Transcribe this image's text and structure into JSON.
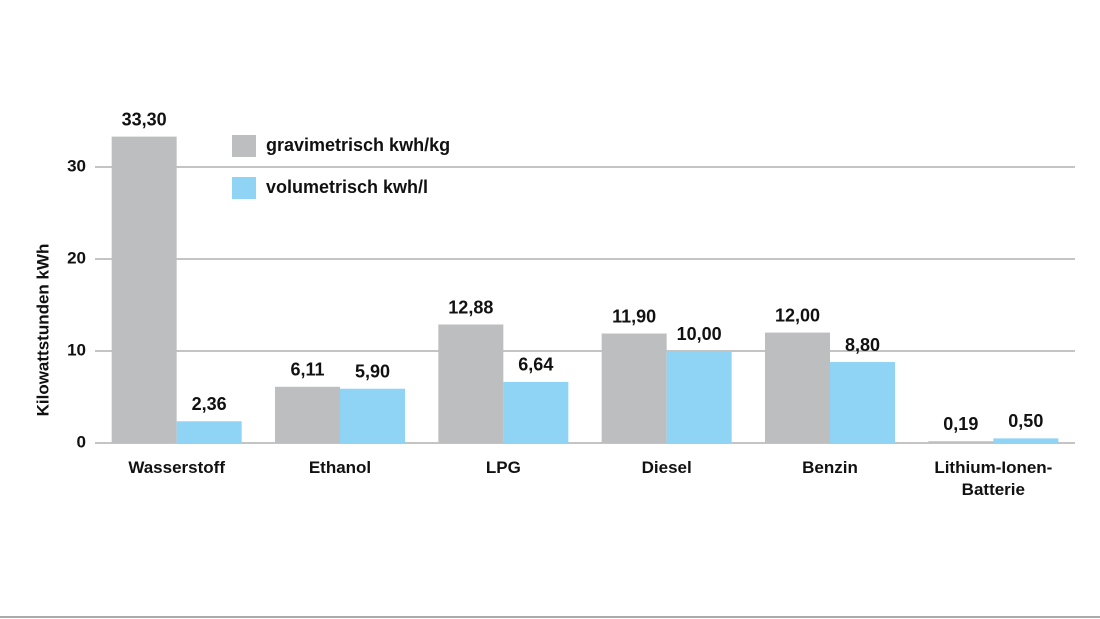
{
  "chart_data": {
    "type": "bar",
    "y_label": "Kilowattstunden kWh",
    "categories": [
      "Wasserstoff",
      "Ethanol",
      "LPG",
      "Diesel",
      "Benzin",
      "Lithium-Ionen-Batterie"
    ],
    "series": [
      {
        "name": "gravimetrisch kwh/kg",
        "color": "#bcbec0",
        "values": [
          33.3,
          6.11,
          12.88,
          11.9,
          12.0,
          0.19
        ],
        "value_labels": [
          "33,30",
          "6,11",
          "12,88",
          "11,90",
          "12,00",
          "0,19"
        ]
      },
      {
        "name": "volumetrisch kwh/l",
        "color": "#8fd3f5",
        "values": [
          2.36,
          5.9,
          6.64,
          10.0,
          8.8,
          0.5
        ],
        "value_labels": [
          "2,36",
          "5,90",
          "6,64",
          "10,00",
          "8,80",
          "0,50"
        ]
      }
    ],
    "ylim": [
      0,
      35
    ],
    "yticks": [
      0,
      10,
      20,
      30
    ],
    "grid": true
  }
}
